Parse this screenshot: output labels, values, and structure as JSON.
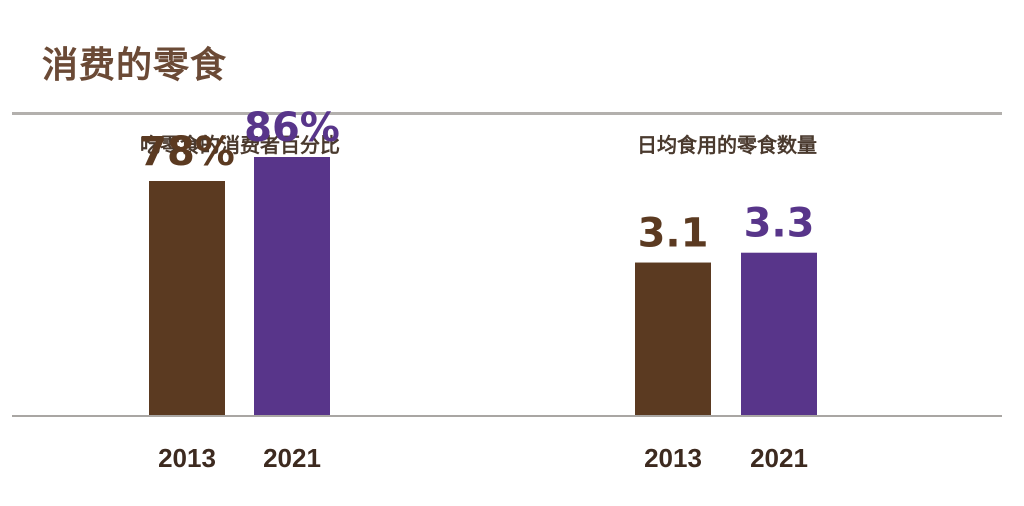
{
  "title": "消费的零食",
  "colors": {
    "y2013": "#5b3a21",
    "y2021": "#58358a",
    "title": "#6b4a36",
    "rule": "#b3b0ad"
  },
  "chart_data": [
    {
      "type": "bar",
      "title": "吃零食的消费者百分比",
      "categories": [
        "2013",
        "2021"
      ],
      "values": [
        78,
        86
      ],
      "value_labels": [
        "78%",
        "86%"
      ],
      "unit": "%",
      "ylim": [
        0,
        100
      ],
      "grid": false
    },
    {
      "type": "bar",
      "title": "日均食用的零食数量",
      "categories": [
        "2013",
        "2021"
      ],
      "values": [
        3.1,
        3.3
      ],
      "value_labels": [
        "3.1",
        "3.3"
      ],
      "ylim": [
        0,
        6.1
      ],
      "grid": false
    }
  ]
}
